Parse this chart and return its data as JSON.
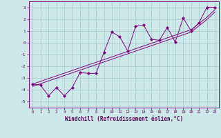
{
  "xlabel": "Windchill (Refroidissement éolien,°C)",
  "background_color": "#cce8e8",
  "grid_color": "#aacccc",
  "line_color": "#800080",
  "marker_color": "#800080",
  "xlim": [
    -0.5,
    23.5
  ],
  "ylim": [
    -5.5,
    3.5
  ],
  "yticks": [
    -5,
    -4,
    -3,
    -2,
    -1,
    0,
    1,
    2,
    3
  ],
  "xticks": [
    0,
    1,
    2,
    3,
    4,
    5,
    6,
    7,
    8,
    9,
    10,
    11,
    12,
    13,
    14,
    15,
    16,
    17,
    18,
    19,
    20,
    21,
    22,
    23
  ],
  "series": [
    {
      "x": [
        0,
        1,
        2,
        3,
        4,
        5,
        6,
        7,
        8,
        9,
        10,
        11,
        12,
        13,
        14,
        15,
        16,
        17,
        18,
        19,
        20,
        21,
        22,
        23
      ],
      "y": [
        -3.5,
        -3.6,
        -4.5,
        -3.8,
        -4.5,
        -3.8,
        -2.5,
        -2.6,
        -2.6,
        -0.8,
        0.9,
        0.5,
        -0.7,
        1.4,
        1.5,
        0.3,
        0.2,
        1.3,
        0.05,
        2.1,
        1.0,
        1.7,
        3.0,
        3.0
      ],
      "has_marker": true
    },
    {
      "x": [
        0,
        1,
        2,
        3,
        4,
        5,
        6,
        7,
        8,
        9,
        10,
        11,
        12,
        13,
        14,
        15,
        16,
        17,
        18,
        19,
        20,
        21,
        22,
        23
      ],
      "y": [
        -3.5,
        -3.27,
        -3.04,
        -2.81,
        -2.58,
        -2.35,
        -2.12,
        -1.89,
        -1.66,
        -1.43,
        -1.2,
        -0.97,
        -0.74,
        -0.51,
        -0.28,
        -0.05,
        0.18,
        0.41,
        0.64,
        0.87,
        1.1,
        1.63,
        2.16,
        2.8
      ],
      "has_marker": false
    },
    {
      "x": [
        0,
        1,
        2,
        3,
        4,
        5,
        6,
        7,
        8,
        9,
        10,
        11,
        12,
        13,
        14,
        15,
        16,
        17,
        18,
        19,
        20,
        21,
        22,
        23
      ],
      "y": [
        -3.7,
        -3.47,
        -3.24,
        -3.01,
        -2.78,
        -2.55,
        -2.32,
        -2.09,
        -1.86,
        -1.63,
        -1.4,
        -1.17,
        -0.94,
        -0.71,
        -0.48,
        -0.25,
        -0.02,
        0.21,
        0.44,
        0.67,
        0.9,
        1.43,
        1.96,
        2.6
      ],
      "has_marker": false
    }
  ]
}
